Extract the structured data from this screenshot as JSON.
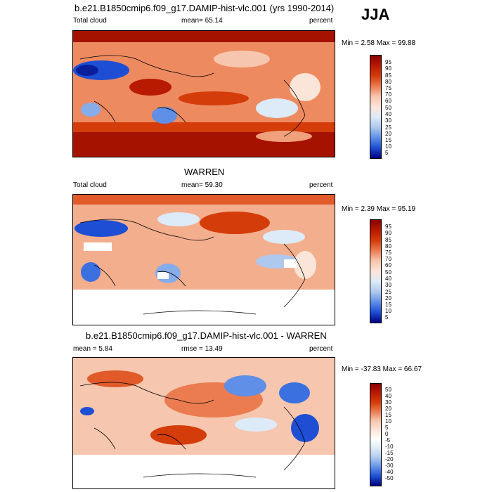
{
  "season": "JJA",
  "panels": [
    {
      "title": "b.e21.B1850cmip6.f09_g17.DAMIP-hist-vlc.001 (yrs 1990-2014)",
      "left_label": "Total cloud",
      "mid_label": "mean=  65.14",
      "right_label": "percent",
      "minmax": "Min =   2.58 Max =  99.88",
      "colorbar_labels": [
        "95",
        "90",
        "85",
        "80",
        "75",
        "70",
        "60",
        "50",
        "40",
        "30",
        "25",
        "20",
        "15",
        "10",
        "5"
      ]
    },
    {
      "title": "WARREN",
      "left_label": "Total cloud",
      "mid_label": "mean=  59.30",
      "right_label": "percent",
      "minmax": "Min =   2.39 Max =  95.19",
      "colorbar_labels": [
        "95",
        "90",
        "85",
        "80",
        "75",
        "70",
        "60",
        "50",
        "40",
        "30",
        "25",
        "20",
        "15",
        "10",
        "5"
      ]
    },
    {
      "title": "b.e21.B1850cmip6.f09_g17.DAMIP-hist-vlc.001 - WARREN",
      "left_label": "mean =   5.84",
      "mid_label": "rmse =  13.49",
      "right_label": "percent",
      "minmax": "Min = -37.83 Max =  66.67",
      "colorbar_labels": [
        "50",
        "40",
        "30",
        "20",
        "15",
        "10",
        "5",
        "0",
        "-5",
        "-10",
        "-15",
        "-20",
        "-30",
        "-40",
        "-50"
      ]
    }
  ],
  "colors": {
    "cloud_scale": [
      "#8b0000",
      "#b81a00",
      "#d43c0a",
      "#e05a2a",
      "#ea7c50",
      "#f1a07c",
      "#f7c6ae",
      "#fbe5d8",
      "#ddeaf7",
      "#aec8ee",
      "#86acea",
      "#5f8fe6",
      "#3a70e0",
      "#1d4ed4",
      "#0a1f9c",
      "#000080"
    ],
    "diff_scale": [
      "#8b0000",
      "#b81a00",
      "#d43c0a",
      "#e05a2a",
      "#ea7c50",
      "#f1a07c",
      "#f7c6ae",
      "#fbe5d8",
      "#ddeaf7",
      "#aec8ee",
      "#86acea",
      "#5f8fe6",
      "#3a70e0",
      "#1d4ed4",
      "#0a1f9c",
      "#000080"
    ]
  }
}
